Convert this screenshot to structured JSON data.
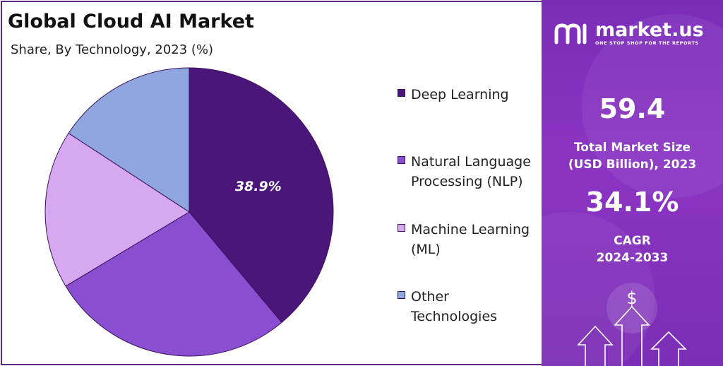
{
  "header": {
    "title": "Global Cloud AI Market",
    "subtitle": "Share, By Technology, 2023 (%)"
  },
  "chart_data": {
    "type": "pie",
    "title": "Global Cloud AI Market",
    "subtitle": "Share, By Technology, 2023 (%)",
    "legend_position": "right",
    "categories": [
      "Deep Learning",
      "Natural Language Processing (NLP)",
      "Machine Learning (ML)",
      "Other Technologies"
    ],
    "values": [
      38.9,
      27.5,
      17.8,
      15.8
    ],
    "colors": [
      "#4b167a",
      "#8a4fd0",
      "#d6a8ef",
      "#8fa6de"
    ],
    "data_labels": [
      {
        "category": "Deep Learning",
        "text": "38.9%"
      }
    ]
  },
  "legend": {
    "items": [
      {
        "lines": [
          "Deep Learning"
        ],
        "color": "#4b167a"
      },
      {
        "lines": [
          "Natural Language",
          "Processing (NLP)"
        ],
        "color": "#8a4fd0"
      },
      {
        "lines": [
          "Machine Learning",
          "(ML)"
        ],
        "color": "#d6a8ef"
      },
      {
        "lines": [
          "Other",
          "Technologies"
        ],
        "color": "#8fa6de"
      }
    ]
  },
  "sidebar": {
    "brand": "market.us",
    "tagline": "ONE STOP SHOP FOR THE REPORTS",
    "market_size_value": "59.4",
    "market_size_label_1": "Total Market Size",
    "market_size_label_2": "(USD Billion), 2023",
    "cagr_value": "34.1%",
    "cagr_label_1": "CAGR",
    "cagr_label_2": "2024-2033",
    "icon": "dollar-growth-arrows-icon",
    "dollar_symbol": "$"
  }
}
